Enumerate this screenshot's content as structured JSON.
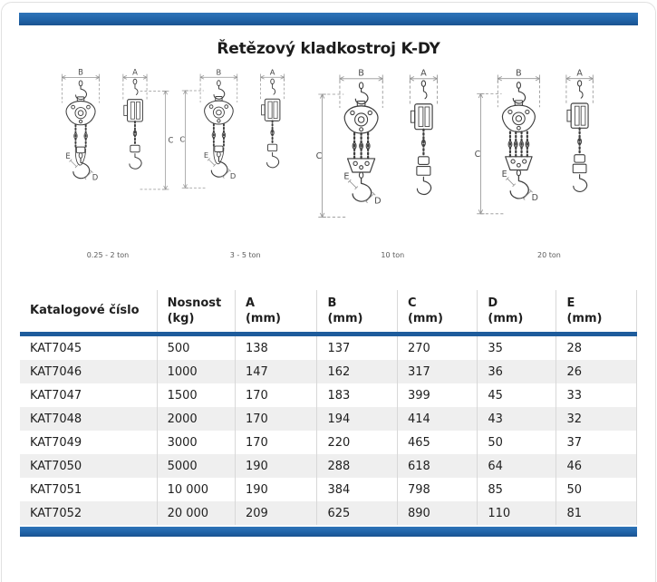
{
  "page": {
    "title": "Řetězový kladkostroj K-DY"
  },
  "colors": {
    "accent_blue": "#2063a8",
    "header_rule_blue": "#1e5c9c",
    "alt_row_gray": "#efefef",
    "divider_gray": "#d8d8d8"
  },
  "drawings": {
    "dim_labels": {
      "front_width": "B",
      "side_width": "A",
      "height": "C",
      "hook_throat": "E",
      "hook_grip": "D"
    },
    "items": [
      {
        "caption": "0.25 - 2 ton"
      },
      {
        "caption": "3 - 5 ton"
      },
      {
        "caption": "10 ton"
      },
      {
        "caption": "20 ton"
      }
    ]
  },
  "table": {
    "columns": [
      {
        "label": "Katalogové číslo",
        "unit": ""
      },
      {
        "label": "Nosnost",
        "unit": "(kg)"
      },
      {
        "label": "A",
        "unit": "(mm)"
      },
      {
        "label": "B",
        "unit": "(mm)"
      },
      {
        "label": "C",
        "unit": "(mm)"
      },
      {
        "label": "D",
        "unit": "(mm)"
      },
      {
        "label": "E",
        "unit": "(mm)"
      }
    ],
    "rows": [
      [
        "KAT7045",
        "500",
        "138",
        "137",
        "270",
        "35",
        "28"
      ],
      [
        "KAT7046",
        "1000",
        "147",
        "162",
        "317",
        "36",
        "26"
      ],
      [
        "KAT7047",
        "1500",
        "170",
        "183",
        "399",
        "45",
        "33"
      ],
      [
        "KAT7048",
        "2000",
        "170",
        "194",
        "414",
        "43",
        "32"
      ],
      [
        "KAT7049",
        "3000",
        "170",
        "220",
        "465",
        "50",
        "37"
      ],
      [
        "KAT7050",
        "5000",
        "190",
        "288",
        "618",
        "64",
        "46"
      ],
      [
        "KAT7051",
        "10 000",
        "190",
        "384",
        "798",
        "85",
        "50"
      ],
      [
        "KAT7052",
        "20 000",
        "209",
        "625",
        "890",
        "110",
        "81"
      ]
    ]
  }
}
